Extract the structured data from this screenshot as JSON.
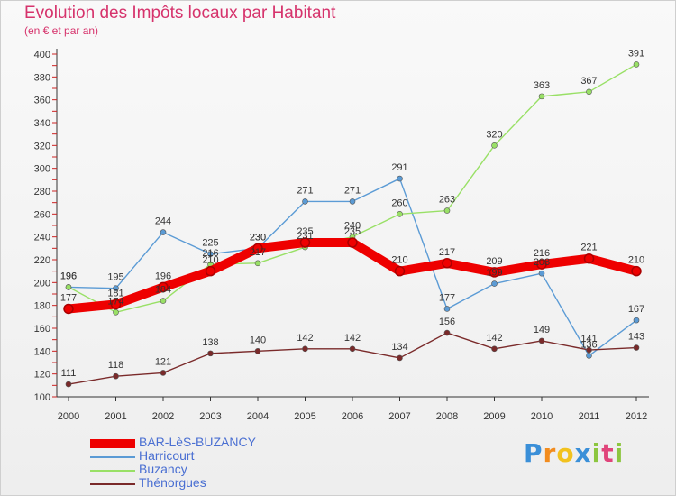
{
  "chart_data": {
    "type": "line",
    "title": "Evolution des Impôts locaux par Habitant",
    "subtitle": "(en € et par an)",
    "categories": [
      "2000",
      "2001",
      "2002",
      "2003",
      "2004",
      "2005",
      "2006",
      "2007",
      "2008",
      "2009",
      "2010",
      "2011",
      "2012"
    ],
    "ylim": [
      100,
      400
    ],
    "yticks": [
      100,
      120,
      140,
      160,
      180,
      200,
      220,
      240,
      260,
      280,
      300,
      320,
      340,
      360,
      380,
      400
    ],
    "grid": false,
    "legend_position": "bottom-left",
    "series": [
      {
        "name": "BAR-LèS-BUZANCY",
        "color": "#ee0000",
        "values": [
          177,
          181,
          196,
          210,
          230,
          235,
          235,
          210,
          217,
          209,
          216,
          221,
          210
        ]
      },
      {
        "name": "Harricourt",
        "color": "#5b9bd5",
        "values": [
          196,
          195,
          244,
          225,
          230,
          271,
          271,
          291,
          177,
          199,
          208,
          136,
          167
        ]
      },
      {
        "name": "Buzancy",
        "color": "#99e066",
        "values": [
          196,
          174,
          184,
          216,
          217,
          231,
          240,
          260,
          263,
          320,
          363,
          367,
          391
        ]
      },
      {
        "name": "Thénorgues",
        "color": "#7a2a2a",
        "values": [
          111,
          118,
          121,
          138,
          140,
          142,
          142,
          134,
          156,
          142,
          149,
          141,
          143
        ]
      }
    ],
    "data_labels": {
      "BAR-LèS-BUZANCY": [
        "177",
        "181",
        "196",
        "210",
        "230",
        "235",
        "235",
        "210",
        "217",
        "209",
        "216",
        "221",
        "210"
      ],
      "Harricourt": [
        "196",
        "195",
        "244",
        "225",
        "230",
        "271",
        "271",
        "291",
        "177",
        "199",
        "208",
        "136",
        "167"
      ],
      "Buzancy": [
        "196",
        "174",
        "184",
        "216",
        "217",
        "231",
        "240",
        "260",
        "263",
        "320",
        "363",
        "367",
        "391"
      ],
      "Thénorgues": [
        "111",
        "118",
        "121",
        "138",
        "140",
        "142",
        "142",
        "134",
        "156",
        "142",
        "149",
        "141",
        "143"
      ]
    }
  },
  "brand": {
    "letters": [
      "P",
      "r",
      "o",
      "x",
      "i",
      "t",
      "i"
    ],
    "colors": [
      "#3a8fd8",
      "#f28c1e",
      "#f2c21e",
      "#3a8fd8",
      "#8cc63f",
      "#e0457b",
      "#8cc63f"
    ]
  }
}
